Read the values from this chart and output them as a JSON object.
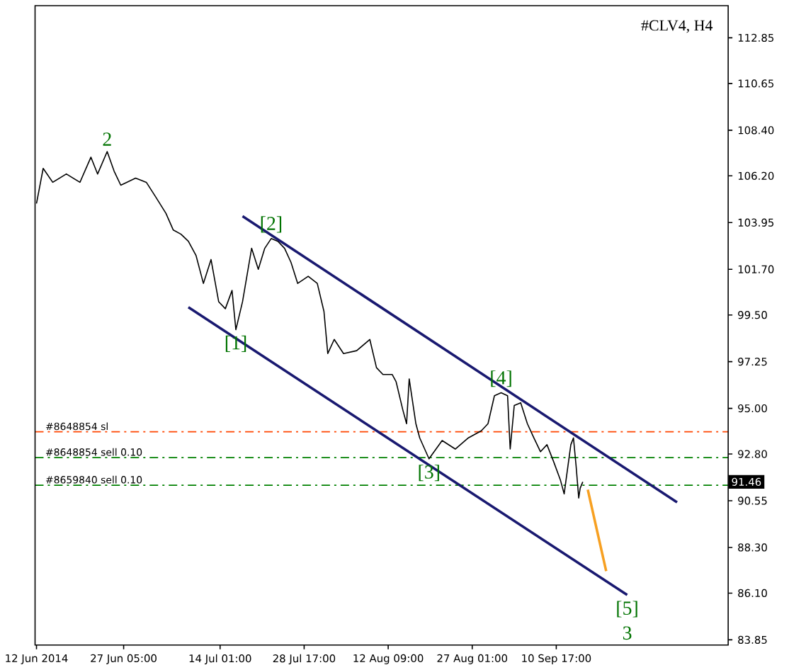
{
  "chart_data": {
    "type": "line",
    "title": "#CLV4, H4",
    "xlim": [
      "2014-06-11T18:00",
      "2014-10-10T17:00"
    ],
    "ylim": [
      83.6,
      114.4
    ],
    "xticks": [
      {
        "value": "2014-06-12T00:00",
        "label": "12 Jun 2014"
      },
      {
        "value": "2014-06-27T05:00",
        "label": "27 Jun 05:00"
      },
      {
        "value": "2014-07-14T01:00",
        "label": "14 Jul 01:00"
      },
      {
        "value": "2014-07-28T17:00",
        "label": "28 Jul 17:00"
      },
      {
        "value": "2014-08-12T09:00",
        "label": "12 Aug 09:00"
      },
      {
        "value": "2014-08-27T01:00",
        "label": "27 Aug 01:00"
      },
      {
        "value": "2014-09-10T17:00",
        "label": "10 Sep 17:00"
      }
    ],
    "yticks": [
      83.85,
      {
        "value": 86.1,
        "label": "86.10"
      },
      {
        "value": 88.3,
        "label": "88.30"
      },
      90.55,
      {
        "value": 92.8,
        "label": "92.80"
      },
      {
        "value": 95,
        "label": "95.00"
      },
      97.25,
      {
        "value": 99.5,
        "label": "99.50"
      },
      {
        "value": 101.7,
        "label": "101.70"
      },
      103.95,
      {
        "value": 106.2,
        "label": "106.20"
      },
      {
        "value": 108.4,
        "label": "108.40"
      },
      110.65,
      112.85
    ],
    "grid": false,
    "marker": "none",
    "series": [
      {
        "color": "#000000",
        "x": [
          "2014-06-12T00:00",
          "2014-06-13T04:00",
          "2014-06-14T20:00",
          "2014-06-17T05:00",
          "2014-06-19T14:00",
          "2014-06-21T12:00",
          "2014-06-22T16:00",
          "2014-06-24T08:00",
          "2014-06-25T13:00",
          "2014-06-26T17:00",
          "2014-06-29T07:00",
          "2014-07-01T04:00",
          "2014-07-02T18:00",
          "2014-07-04T14:00",
          "2014-07-05T21:00",
          "2014-07-07T05:00",
          "2014-07-08T12:00",
          "2014-07-09T20:00",
          "2014-07-11T03:00",
          "2014-07-12T11:00",
          "2014-07-13T19:00",
          "2014-07-14T23:00",
          "2014-07-16T03:00",
          "2014-07-16T19:00",
          "2014-07-17T23:00",
          "2014-07-19T13:00",
          "2014-07-20T17:00",
          "2014-07-21T20:00",
          "2014-07-22T23:00",
          "2014-07-24T03:00",
          "2014-07-25T07:00",
          "2014-07-26T10:00",
          "2014-07-27T14:00",
          "2014-07-29T10:00",
          "2014-07-31T00:00",
          "2014-08-01T04:00",
          "2014-08-01T20:00",
          "2014-08-02T23:00",
          "2014-08-04T14:00",
          "2014-08-06T21:00",
          "2014-08-09T04:00",
          "2014-08-10T08:00",
          "2014-08-11T11:00",
          "2014-08-13T02:00",
          "2014-08-13T18:00",
          "2014-08-14T22:00",
          "2014-08-15T14:00",
          "2014-08-16T01:00",
          "2014-08-17T05:00",
          "2014-08-17T21:00",
          "2014-08-19T12:00",
          "2014-08-21T19:00",
          "2014-08-24T02:00",
          "2014-08-26T09:00",
          "2014-08-28T15:00",
          "2014-08-29T19:00",
          "2014-08-30T22:00",
          "2014-09-01T02:00",
          "2014-09-02T05:00",
          "2014-09-02T16:00",
          "2014-09-03T09:00",
          "2014-09-04T12:00",
          "2014-09-05T16:00",
          "2014-09-06T19:00",
          "2014-09-07T23:00",
          "2014-09-09T02:00",
          "2014-09-10T06:00",
          "2014-09-11T10:00",
          "2014-09-12T02:00",
          "2014-09-13T06:00",
          "2014-09-13T17:00",
          "2014-09-14T04:00",
          "2014-09-14T15:00",
          "2014-09-14T21:00",
          "2014-09-15T08:00"
        ],
        "values": [
          104.87,
          106.56,
          105.89,
          106.29,
          105.89,
          107.1,
          106.29,
          107.37,
          106.43,
          105.75,
          106.09,
          105.89,
          105.21,
          104.4,
          103.59,
          103.39,
          103.05,
          102.37,
          101.02,
          102.17,
          100.14,
          99.8,
          100.68,
          98.79,
          100.14,
          102.71,
          101.7,
          102.71,
          103.18,
          103.05,
          102.71,
          102.03,
          101.02,
          101.36,
          101.02,
          99.67,
          97.64,
          98.32,
          97.64,
          97.78,
          98.32,
          96.96,
          96.63,
          96.63,
          96.29,
          94.94,
          94.26,
          96.42,
          94.26,
          93.58,
          92.57,
          93.45,
          93.04,
          93.58,
          93.92,
          94.26,
          95.61,
          95.75,
          95.61,
          93.04,
          95.14,
          95.27,
          94.26,
          93.58,
          92.91,
          93.25,
          92.43,
          91.56,
          90.88,
          93.25,
          93.58,
          92.23,
          90.68,
          91.15,
          91.46
        ]
      },
      {
        "color": "#191970",
        "x": [
          "2014-07-17T23:00",
          "2014-10-01T19:00"
        ],
        "values": [
          104.26,
          90.47
        ]
      },
      {
        "color": "#191970",
        "x": [
          "2014-07-08T12:00",
          "2014-09-23T02:00"
        ],
        "values": [
          99.87,
          86.01
        ]
      },
      {
        "color": "#f7a021",
        "x": [
          "2014-09-16T05:00",
          "2014-09-19T10:00"
        ],
        "values": [
          91.08,
          87.16
        ]
      }
    ],
    "ref_lines": [
      {
        "axis": "y",
        "value": 93.87,
        "label": "#8648854 sl",
        "color": "#ff4500",
        "line_style": "dashed"
      },
      {
        "axis": "y",
        "value": 92.63,
        "label": "#8648854 sell 0.10",
        "color": "#008000",
        "line_style": "dashed"
      },
      {
        "axis": "y",
        "value": 91.3,
        "label": "#8659840 sell 0.10",
        "color": "#008000",
        "line_style": "dashed"
      }
    ],
    "annotations": [
      {
        "text": "2",
        "x": "2014-06-24T08:00",
        "y": 107.37
      },
      {
        "text": "[1]",
        "x": "2014-07-16T19:00",
        "y": 98.79
      },
      {
        "text": "[2]",
        "x": "2014-07-22T23:00",
        "y": 103.18
      },
      {
        "text": "[3]",
        "x": "2014-08-19T12:00",
        "y": 92.57
      },
      {
        "text": "[4]",
        "x": "2014-09-01T02:00",
        "y": 95.75
      },
      {
        "text": "[5]",
        "x": "2014-09-23T02:00",
        "y": 86.01
      },
      {
        "text": "3",
        "x": "2014-09-23T02:00",
        "y": 86.01
      },
      "91.46"
    ]
  }
}
